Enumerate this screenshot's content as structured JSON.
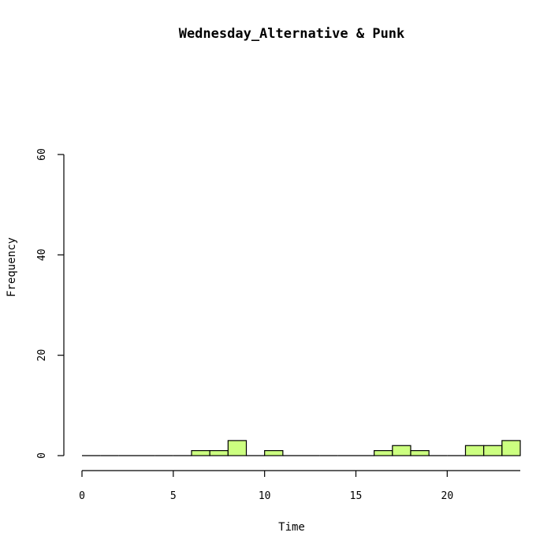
{
  "chart_data": {
    "type": "bar",
    "title": "Wednesday_Alternative & Punk",
    "xlabel": "Time",
    "ylabel": "Frequency",
    "xlim": [
      0,
      24
    ],
    "ylim": [
      0,
      60
    ],
    "x_ticks": [
      0,
      5,
      10,
      15,
      20
    ],
    "y_ticks": [
      0,
      20,
      40,
      60
    ],
    "bin_width": 1,
    "bins": [
      {
        "start": 0,
        "end": 1,
        "value": 0
      },
      {
        "start": 1,
        "end": 2,
        "value": 0
      },
      {
        "start": 2,
        "end": 3,
        "value": 0
      },
      {
        "start": 3,
        "end": 4,
        "value": 0
      },
      {
        "start": 4,
        "end": 5,
        "value": 0
      },
      {
        "start": 5,
        "end": 6,
        "value": 0
      },
      {
        "start": 6,
        "end": 7,
        "value": 1
      },
      {
        "start": 7,
        "end": 8,
        "value": 1
      },
      {
        "start": 8,
        "end": 9,
        "value": 3
      },
      {
        "start": 9,
        "end": 10,
        "value": 0
      },
      {
        "start": 10,
        "end": 11,
        "value": 1
      },
      {
        "start": 11,
        "end": 12,
        "value": 0
      },
      {
        "start": 12,
        "end": 13,
        "value": 0
      },
      {
        "start": 13,
        "end": 14,
        "value": 0
      },
      {
        "start": 14,
        "end": 15,
        "value": 0
      },
      {
        "start": 15,
        "end": 16,
        "value": 0
      },
      {
        "start": 16,
        "end": 17,
        "value": 1
      },
      {
        "start": 17,
        "end": 18,
        "value": 2
      },
      {
        "start": 18,
        "end": 19,
        "value": 1
      },
      {
        "start": 19,
        "end": 20,
        "value": 0
      },
      {
        "start": 20,
        "end": 21,
        "value": 0
      },
      {
        "start": 21,
        "end": 22,
        "value": 2
      },
      {
        "start": 22,
        "end": 23,
        "value": 2
      },
      {
        "start": 23,
        "end": 24,
        "value": 3
      }
    ],
    "bar_color": "#ccff80",
    "bar_stroke": "#000000",
    "grid": false
  }
}
